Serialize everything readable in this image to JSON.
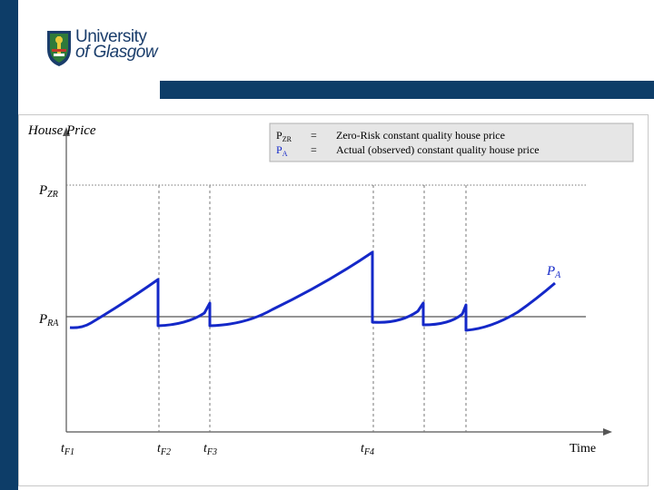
{
  "logo": {
    "line1": "University",
    "line2": "of Glasgow"
  },
  "diagram": {
    "y_axis_label": "House Price",
    "x_axis_label": "Time",
    "legend": {
      "rows": [
        {
          "symbol": "P",
          "sub": "ZR",
          "eq": "=",
          "text": "Zero-Risk constant quality house price"
        },
        {
          "symbol": "P",
          "sub": "A",
          "eq": "=",
          "text": "Actual (observed) constant quality house price"
        }
      ]
    },
    "levels": [
      {
        "symbol": "P",
        "sub": "ZR"
      },
      {
        "symbol": "P",
        "sub": "RA"
      }
    ],
    "curve_label": {
      "symbol": "P",
      "sub": "A"
    },
    "time_ticks": [
      {
        "symbol": "t",
        "sub": "F1"
      },
      {
        "symbol": "t",
        "sub": "F2"
      },
      {
        "symbol": "t",
        "sub": "F3"
      },
      {
        "symbol": "t",
        "sub": "F4"
      }
    ]
  },
  "colors": {
    "brand": "#0d3d68",
    "curve": "#1428c8",
    "legend_bg": "#e6e6e6"
  }
}
